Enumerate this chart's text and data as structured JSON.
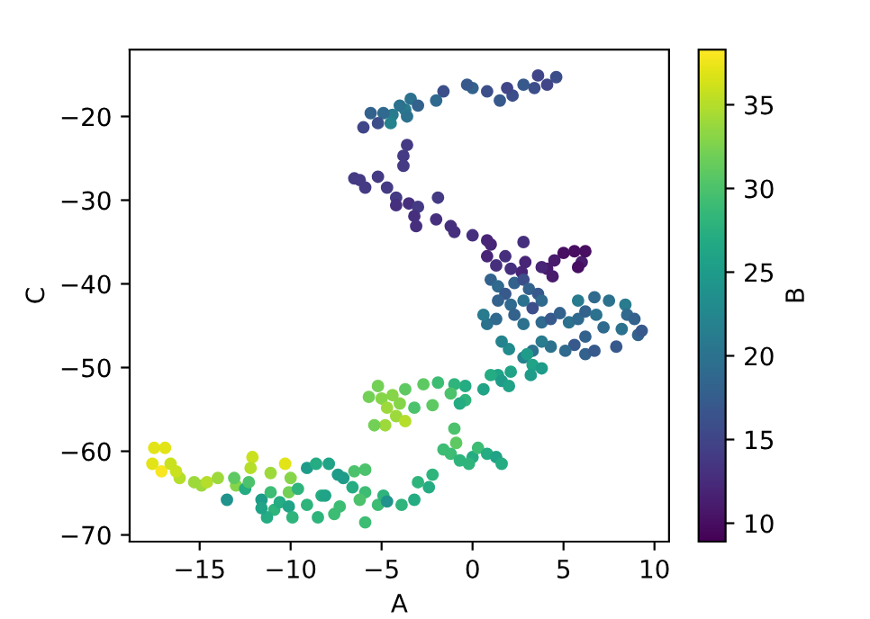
{
  "chart_data": {
    "type": "scatter",
    "xlabel": "A",
    "ylabel": "C",
    "clabel": "B",
    "xlim": [
      -18.85,
      10.8
    ],
    "ylim": [
      -70.8,
      -12
    ],
    "xticks": [
      -15,
      -10,
      -5,
      0,
      5,
      10
    ],
    "yticks": [
      -70,
      -60,
      -50,
      -40,
      -30,
      -20
    ],
    "clim": [
      8.9,
      38.3
    ],
    "cticks": [
      10,
      15,
      20,
      25,
      30,
      35
    ],
    "grid": false,
    "legend": false,
    "series": [
      {
        "x": [
          4.6,
          4.1,
          3.6,
          3.4,
          2.8,
          2.2,
          1.9,
          1.5,
          0.8,
          0.0,
          -0.3,
          -1.6,
          -2.0,
          -3.4,
          -3.7,
          -4.0,
          -4.4,
          -4.9,
          -5.2,
          -5.6,
          -3.6,
          -3.0,
          -4.5,
          -6.0,
          -3.6,
          -3.8,
          -3.8,
          -6.5,
          -6.2,
          -5.9,
          -5.2,
          -4.7,
          -4.2,
          -3.5,
          -4.2,
          -3.0,
          -1.9,
          -3.2,
          -3.1,
          -2.0,
          -1.2,
          -1.0,
          0.0,
          0.8,
          1.0,
          5.0,
          5.6,
          6.0,
          6.2,
          5.8,
          4.5,
          4.1,
          4.4,
          3.8,
          2.9,
          2.7,
          2.1,
          1.3,
          0.8,
          1.8,
          2.8,
          1.0,
          1.4,
          1.8,
          2.3,
          2.8,
          3.1,
          3.6,
          3.8,
          3.3,
          2.8,
          2.1,
          1.4,
          0.8,
          0.6,
          1.3,
          2.3,
          2.8,
          3.8,
          4.3,
          4.8,
          5.3,
          5.8,
          6.2,
          6.8,
          8.4,
          8.5,
          8.9,
          9.1,
          9.3,
          8.2,
          7.2,
          6.2,
          5.6,
          5.1,
          4.3,
          3.8,
          3.3,
          2.8,
          2.0,
          1.6,
          6.2,
          6.7,
          7.9,
          5.8,
          6.7,
          7.5,
          3.0,
          3.3,
          3.8,
          3.2,
          2.1,
          1.4,
          1.6,
          2.0,
          1.0,
          -0.4,
          0.6,
          -0.4,
          -1.0,
          -0.7,
          -5.2,
          -5.0,
          -5.7,
          -4.7,
          -4.2,
          -4.0,
          -3.7,
          -3.7,
          -4.4,
          -4.8,
          -3.2,
          -2.7,
          -1.9,
          -5.4,
          -2.2,
          -1.2,
          -1.0,
          -0.9,
          -1.2,
          -0.7,
          0.0,
          0.3,
          0.8,
          1.3,
          1.6,
          -0.2,
          -1.6,
          -2.2,
          -2.4,
          -3.0,
          -3.2,
          -3.9,
          -5.9,
          -5.9,
          -5.2,
          -4.9,
          -17.5,
          -16.9,
          -17.6,
          -17.1,
          -16.6,
          -16.1,
          -16.3,
          -15.3,
          -14.9,
          -14.6,
          -14.0,
          -13.0,
          -12.1,
          -12.2,
          -11.1,
          -10.0,
          -10.3,
          -10.1,
          -13.1,
          -13.5,
          -12.5,
          -12.3,
          -11.6,
          -11.1,
          -10.9,
          -11.3,
          -11.6,
          -10.6,
          -9.6,
          -9.1,
          -8.6,
          -7.9,
          -7.1,
          -6.6,
          -6.5,
          -9.1,
          -8.3,
          -7.6,
          -7.3,
          -8.5,
          -8.1,
          -6.2,
          -5.9,
          -4.7,
          -7.4,
          -10.1,
          -9.9
        ],
        "values": [
          -15.3,
          -16.2,
          -15.1,
          -16.6,
          -16.2,
          -17.5,
          -16.6,
          -18.1,
          -17.0,
          -16.6,
          -16.2,
          -17.0,
          -18.1,
          -17.9,
          -19.2,
          -18.7,
          -19.8,
          -19.6,
          -20.8,
          -19.6,
          -20.0,
          -18.7,
          -20.8,
          -21.3,
          -23.4,
          -24.7,
          -25.9,
          -27.4,
          -27.6,
          -28.5,
          -27.2,
          -28.5,
          -29.7,
          -30.4,
          -30.6,
          -30.8,
          -29.7,
          -31.9,
          -33.1,
          -32.3,
          -33.1,
          -33.8,
          -34.2,
          -34.8,
          -35.3,
          -36.3,
          -36.1,
          -37.4,
          -36.1,
          -38.0,
          -37.2,
          -38.2,
          -39.1,
          -38.0,
          -37.4,
          -38.6,
          -38.2,
          -37.8,
          -36.7,
          -36.7,
          -35.0,
          -39.5,
          -40.3,
          -41.2,
          -39.9,
          -39.5,
          -40.6,
          -41.2,
          -42.0,
          -42.9,
          -42.0,
          -42.5,
          -42.0,
          -44.8,
          -43.7,
          -44.2,
          -43.7,
          -44.8,
          -44.6,
          -44.2,
          -43.5,
          -44.6,
          -44.2,
          -43.3,
          -43.7,
          -42.5,
          -43.7,
          -44.2,
          -46.1,
          -45.6,
          -45.4,
          -45.2,
          -46.3,
          -47.3,
          -48.0,
          -47.5,
          -46.9,
          -48.0,
          -48.8,
          -47.8,
          -46.9,
          -48.4,
          -48.0,
          -47.5,
          -42.0,
          -41.6,
          -42.0,
          -48.4,
          -49.7,
          -50.1,
          -50.9,
          -50.5,
          -50.9,
          -51.6,
          -52.2,
          -50.9,
          -52.2,
          -52.6,
          -53.9,
          -52.0,
          -54.3,
          -52.2,
          -53.7,
          -53.5,
          -54.8,
          -55.8,
          -54.3,
          -56.4,
          -52.6,
          -53.3,
          -56.9,
          -54.8,
          -52.0,
          -51.8,
          -56.9,
          -54.5,
          -53.1,
          -57.3,
          -59.0,
          -60.3,
          -61.1,
          -60.7,
          -59.6,
          -60.3,
          -60.7,
          -61.5,
          -61.5,
          -59.8,
          -62.8,
          -64.3,
          -63.7,
          -65.8,
          -66.4,
          -62.2,
          -64.9,
          -66.4,
          -65.3,
          -59.6,
          -59.6,
          -61.5,
          -62.4,
          -61.5,
          -63.2,
          -62.4,
          -63.7,
          -64.1,
          -63.7,
          -63.2,
          -64.1,
          -60.7,
          -62.0,
          -62.6,
          -63.2,
          -61.5,
          -64.9,
          -63.2,
          -65.8,
          -64.5,
          -63.7,
          -65.8,
          -64.9,
          -67.0,
          -67.9,
          -66.8,
          -66.1,
          -64.5,
          -62.0,
          -61.5,
          -61.5,
          -63.2,
          -64.3,
          -62.4,
          -66.4,
          -65.3,
          -67.5,
          -66.6,
          -67.9,
          -65.3,
          -65.8,
          -68.5,
          -66.0,
          -62.8,
          -66.6,
          -67.9
        ],
        "cvalues": [
          16,
          15,
          15,
          16,
          17,
          16,
          15,
          17,
          16,
          18,
          17,
          16,
          19,
          20,
          21,
          20,
          21,
          19,
          16,
          18,
          20,
          18,
          22,
          15,
          14,
          14,
          14,
          14,
          14,
          14,
          14,
          14,
          14,
          13,
          13,
          14,
          14,
          13,
          13,
          13,
          13,
          13,
          13,
          12,
          12,
          10,
          10,
          11,
          10,
          10,
          11,
          11,
          11,
          12,
          12,
          12,
          13,
          13,
          12,
          13,
          13,
          18,
          19,
          17,
          18,
          16,
          18,
          17,
          19,
          16,
          20,
          19,
          18,
          20,
          21,
          19,
          18,
          20,
          19,
          17,
          18,
          20,
          19,
          18,
          20,
          21,
          19,
          18,
          18,
          17,
          20,
          19,
          18,
          17,
          19,
          20,
          21,
          20,
          22,
          23,
          22,
          18,
          17,
          17,
          21,
          19,
          20,
          25,
          26,
          25,
          25,
          26,
          26,
          25,
          26,
          27,
          27,
          26,
          28,
          28,
          27,
          32,
          33,
          32,
          34,
          34,
          33,
          35,
          31,
          33,
          34,
          30,
          31,
          29,
          32,
          31,
          30,
          30,
          31,
          29,
          28,
          27,
          29,
          27,
          26,
          27,
          28,
          29,
          28,
          27,
          28,
          27,
          28,
          30,
          29,
          29,
          28,
          37,
          37,
          37,
          38,
          36,
          35,
          36,
          34,
          34,
          35,
          34,
          33,
          36,
          35,
          34,
          33,
          37,
          32,
          31,
          24,
          27,
          30,
          25,
          29,
          28,
          27,
          26,
          27,
          28,
          25,
          27,
          26,
          25,
          27,
          30,
          28,
          27,
          29,
          29,
          28,
          26,
          30,
          29,
          24,
          25,
          26,
          28
        ]
      }
    ]
  }
}
